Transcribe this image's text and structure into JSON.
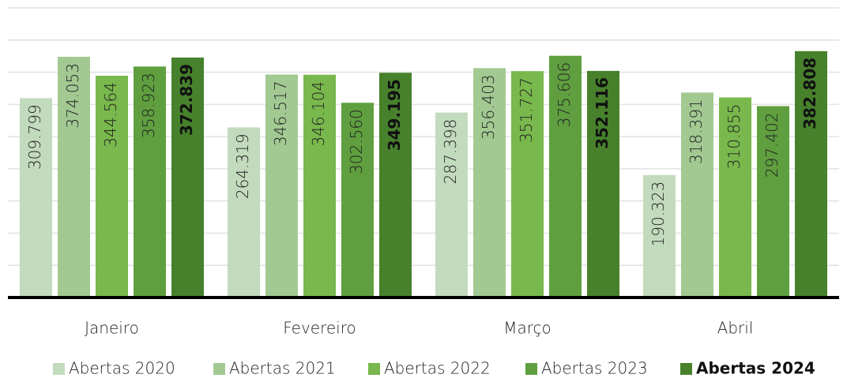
{
  "chart_data": {
    "type": "bar",
    "categories": [
      "Janeiro",
      "Fevereiro",
      "Março",
      "Abril"
    ],
    "series": [
      {
        "name": "Abertas 2020",
        "color": "#c3dbbd",
        "values": [
          309799,
          264319,
          287398,
          190323
        ],
        "value_labels": [
          "309.799",
          "264.319",
          "287.398",
          "190.323"
        ]
      },
      {
        "name": "Abertas 2021",
        "color": "#a2c992",
        "values": [
          374053,
          346517,
          356403,
          318391
        ],
        "value_labels": [
          "374.053",
          "346.517",
          "356.403",
          "318.391"
        ]
      },
      {
        "name": "Abertas 2022",
        "color": "#78b84c",
        "values": [
          344564,
          346104,
          351727,
          310855
        ],
        "value_labels": [
          "344.564",
          "346.104",
          "351.727",
          "310.855"
        ]
      },
      {
        "name": "Abertas 2023",
        "color": "#5f9f3f",
        "values": [
          358923,
          302560,
          375606,
          297402
        ],
        "value_labels": [
          "358.923",
          "302.560",
          "375.606",
          "297.402"
        ]
      },
      {
        "name": "Abertas 2024",
        "color": "#47812c",
        "bold": true,
        "values": [
          372839,
          349195,
          352116,
          382808
        ],
        "value_labels": [
          "372.839",
          "349.195",
          "352.116",
          "382.808"
        ]
      }
    ],
    "ylim": [
      0,
      450000
    ],
    "yticks": [
      0,
      50000,
      100000,
      150000,
      200000,
      250000,
      300000,
      350000,
      400000,
      450000
    ],
    "grid": true,
    "legend": "bottom"
  }
}
